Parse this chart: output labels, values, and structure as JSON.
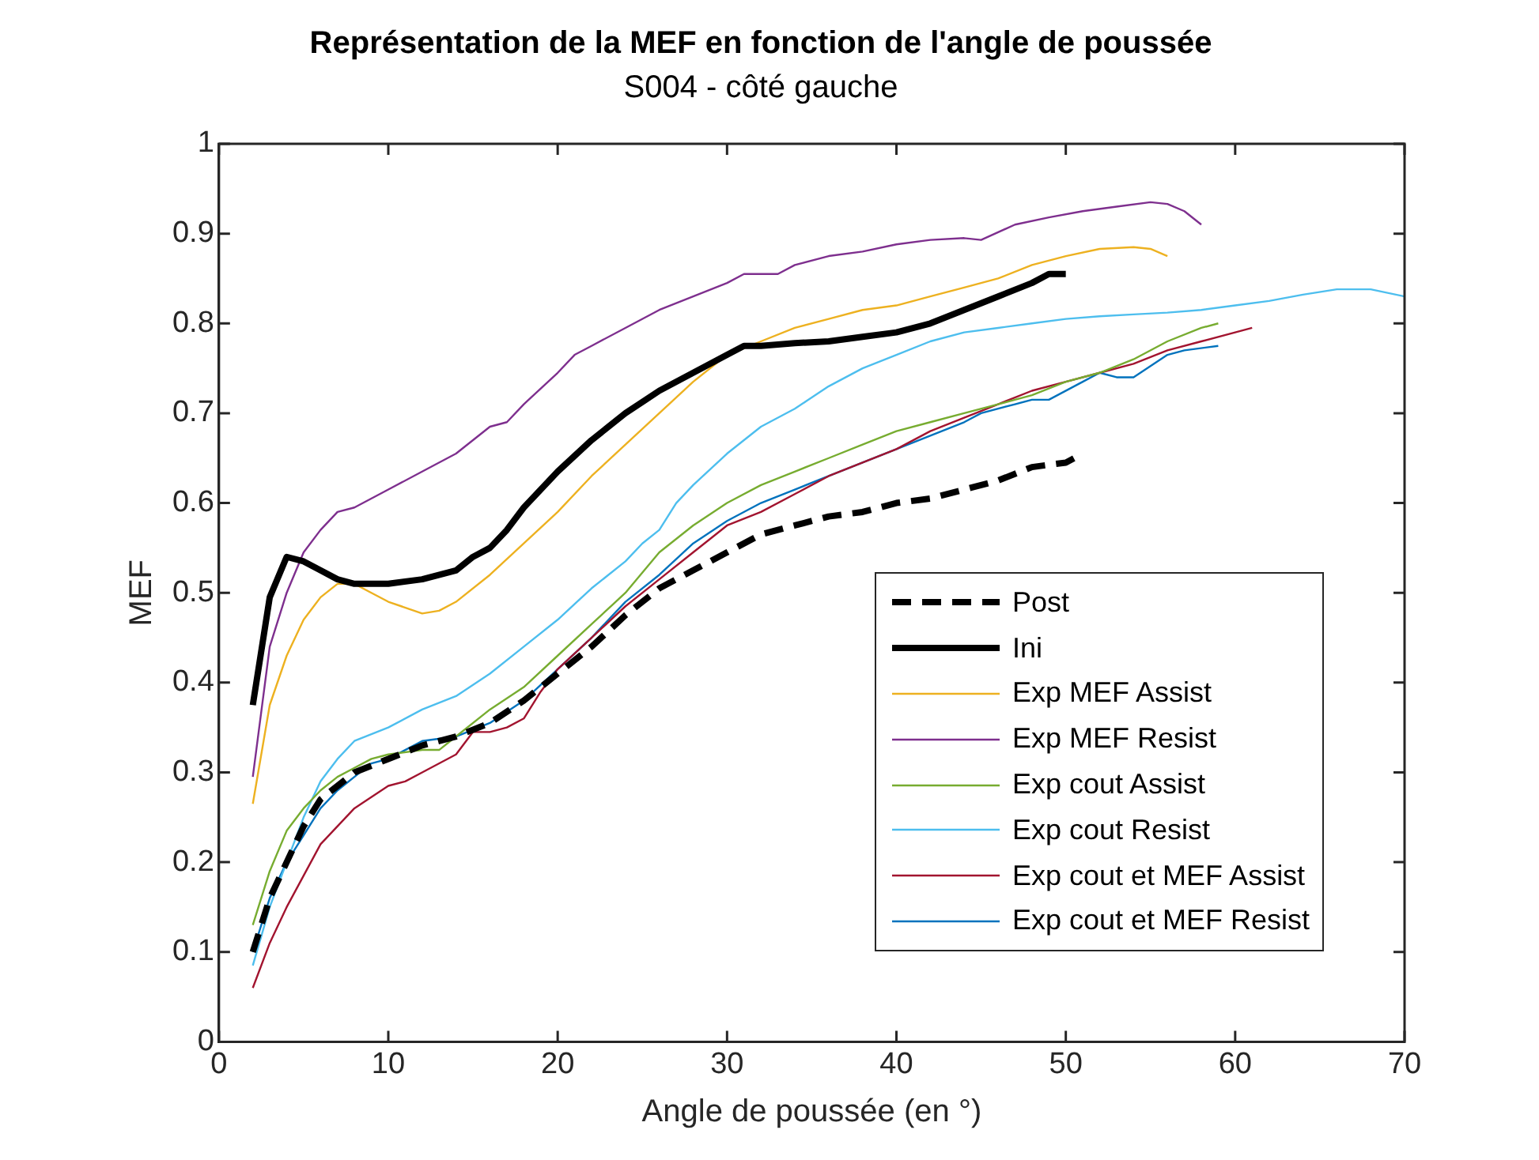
{
  "chart_data": {
    "type": "line",
    "title": "Représentation de la MEF en fonction de l'angle de poussée",
    "subtitle": "S004 - côté gauche",
    "xlabel": "Angle de poussée (en °)",
    "ylabel": "MEF",
    "xlim": [
      0,
      70
    ],
    "xticks": [
      0,
      10,
      20,
      30,
      40,
      50,
      60,
      70
    ],
    "ylim": [
      0,
      1
    ],
    "yticks": [
      0,
      0.1,
      0.2,
      0.3,
      0.4,
      0.5,
      0.6,
      0.7,
      0.8,
      0.9,
      1
    ],
    "grid": false,
    "legend": "right",
    "marker": "none",
    "series": [
      {
        "name": "Post",
        "color": "#000000",
        "line_style": "dashed",
        "x": [
          2,
          3,
          4,
          5,
          6,
          8,
          10,
          12,
          14,
          16,
          18,
          20,
          22,
          24,
          26,
          28,
          30,
          32,
          34,
          36,
          38,
          40,
          42,
          44,
          46,
          48,
          50,
          51
        ],
        "values": [
          0.1,
          0.16,
          0.2,
          0.24,
          0.27,
          0.3,
          0.315,
          0.33,
          0.34,
          0.355,
          0.38,
          0.41,
          0.44,
          0.475,
          0.505,
          0.525,
          0.545,
          0.565,
          0.575,
          0.585,
          0.59,
          0.6,
          0.605,
          0.615,
          0.625,
          0.64,
          0.645,
          0.655
        ]
      },
      {
        "name": "Ini",
        "color": "#000000",
        "line_style": "solid",
        "x": [
          2,
          3,
          4,
          5,
          6,
          7,
          8,
          10,
          12,
          14,
          15,
          16,
          17,
          18,
          19,
          20,
          22,
          24,
          26,
          28,
          30,
          31,
          32,
          34,
          36,
          38,
          40,
          42,
          44,
          46,
          48,
          49,
          50
        ],
        "values": [
          0.375,
          0.495,
          0.54,
          0.535,
          0.525,
          0.515,
          0.51,
          0.51,
          0.515,
          0.525,
          0.54,
          0.55,
          0.57,
          0.595,
          0.615,
          0.635,
          0.67,
          0.7,
          0.725,
          0.745,
          0.765,
          0.775,
          0.775,
          0.778,
          0.78,
          0.785,
          0.79,
          0.8,
          0.815,
          0.83,
          0.845,
          0.855,
          0.855
        ]
      },
      {
        "name": "Exp MEF Assist",
        "color": "#edb120",
        "line_style": "solid",
        "x": [
          2,
          3,
          4,
          5,
          6,
          7,
          8,
          9,
          10,
          12,
          13,
          14,
          16,
          18,
          20,
          22,
          24,
          26,
          28,
          30,
          32,
          34,
          36,
          38,
          40,
          42,
          44,
          46,
          48,
          50,
          52,
          54,
          55,
          56
        ],
        "values": [
          0.265,
          0.375,
          0.43,
          0.47,
          0.495,
          0.51,
          0.51,
          0.5,
          0.49,
          0.477,
          0.48,
          0.49,
          0.52,
          0.555,
          0.59,
          0.63,
          0.665,
          0.7,
          0.735,
          0.765,
          0.78,
          0.795,
          0.805,
          0.815,
          0.82,
          0.83,
          0.84,
          0.85,
          0.865,
          0.875,
          0.883,
          0.885,
          0.883,
          0.875
        ]
      },
      {
        "name": "Exp MEF Resist",
        "color": "#7e2f8e",
        "line_style": "solid",
        "x": [
          2,
          3,
          4,
          5,
          6,
          7,
          8,
          10,
          12,
          14,
          16,
          17,
          18,
          20,
          21,
          22,
          24,
          26,
          28,
          30,
          31,
          33,
          34,
          36,
          38,
          40,
          42,
          44,
          45,
          47,
          49,
          51,
          53,
          55,
          56,
          57,
          58
        ],
        "values": [
          0.295,
          0.44,
          0.5,
          0.545,
          0.57,
          0.59,
          0.595,
          0.615,
          0.635,
          0.655,
          0.685,
          0.69,
          0.71,
          0.745,
          0.765,
          0.775,
          0.795,
          0.815,
          0.83,
          0.845,
          0.855,
          0.855,
          0.865,
          0.875,
          0.88,
          0.888,
          0.893,
          0.895,
          0.893,
          0.91,
          0.918,
          0.925,
          0.93,
          0.935,
          0.933,
          0.925,
          0.91
        ]
      },
      {
        "name": "Exp cout Assist",
        "color": "#77ac30",
        "line_style": "solid",
        "x": [
          2,
          3,
          4,
          5,
          6,
          7,
          8,
          9,
          10,
          12,
          13,
          14,
          16,
          18,
          20,
          22,
          24,
          26,
          28,
          30,
          32,
          34,
          36,
          38,
          40,
          42,
          44,
          46,
          48,
          50,
          52,
          54,
          56,
          58,
          59
        ],
        "values": [
          0.13,
          0.19,
          0.235,
          0.26,
          0.28,
          0.295,
          0.305,
          0.315,
          0.32,
          0.325,
          0.325,
          0.34,
          0.37,
          0.395,
          0.43,
          0.465,
          0.5,
          0.545,
          0.575,
          0.6,
          0.62,
          0.635,
          0.65,
          0.665,
          0.68,
          0.69,
          0.7,
          0.71,
          0.72,
          0.735,
          0.745,
          0.76,
          0.78,
          0.795,
          0.8
        ]
      },
      {
        "name": "Exp cout Resist",
        "color": "#4dbeee",
        "line_style": "solid",
        "x": [
          2,
          3,
          4,
          5,
          6,
          7,
          8,
          10,
          12,
          14,
          16,
          18,
          20,
          22,
          24,
          25,
          26,
          27,
          28,
          30,
          32,
          34,
          36,
          38,
          40,
          42,
          44,
          46,
          48,
          50,
          52,
          54,
          56,
          58,
          60,
          62,
          64,
          66,
          68,
          70
        ],
        "values": [
          0.085,
          0.15,
          0.2,
          0.25,
          0.29,
          0.315,
          0.335,
          0.35,
          0.37,
          0.385,
          0.41,
          0.44,
          0.47,
          0.505,
          0.535,
          0.555,
          0.57,
          0.6,
          0.62,
          0.655,
          0.685,
          0.705,
          0.73,
          0.75,
          0.765,
          0.78,
          0.79,
          0.795,
          0.8,
          0.805,
          0.808,
          0.81,
          0.812,
          0.815,
          0.82,
          0.825,
          0.832,
          0.838,
          0.838,
          0.83
        ]
      },
      {
        "name": "Exp cout et MEF Assist",
        "color": "#a2142f",
        "line_style": "solid",
        "x": [
          2,
          3,
          4,
          5,
          6,
          8,
          10,
          11,
          12,
          14,
          15,
          16,
          17,
          18,
          19,
          20,
          22,
          24,
          26,
          28,
          30,
          32,
          34,
          36,
          38,
          40,
          42,
          44,
          46,
          48,
          50,
          52,
          54,
          56,
          58,
          60,
          61
        ],
        "values": [
          0.06,
          0.11,
          0.15,
          0.185,
          0.22,
          0.26,
          0.285,
          0.29,
          0.3,
          0.32,
          0.345,
          0.345,
          0.35,
          0.36,
          0.39,
          0.415,
          0.45,
          0.485,
          0.515,
          0.545,
          0.575,
          0.59,
          0.61,
          0.63,
          0.645,
          0.66,
          0.68,
          0.695,
          0.71,
          0.725,
          0.735,
          0.745,
          0.755,
          0.77,
          0.78,
          0.79,
          0.795
        ]
      },
      {
        "name": "Exp cout et MEF Resist",
        "color": "#0072bd",
        "line_style": "solid",
        "x": [
          2,
          3,
          4,
          5,
          6,
          7,
          8,
          9,
          10,
          11,
          12,
          14,
          16,
          18,
          20,
          22,
          24,
          26,
          28,
          30,
          32,
          34,
          36,
          38,
          40,
          42,
          44,
          45,
          47,
          48,
          49,
          51,
          52,
          53,
          54,
          56,
          57,
          59
        ],
        "values": [
          0.1,
          0.16,
          0.2,
          0.23,
          0.26,
          0.28,
          0.295,
          0.31,
          0.315,
          0.325,
          0.335,
          0.34,
          0.355,
          0.38,
          0.415,
          0.45,
          0.49,
          0.52,
          0.555,
          0.58,
          0.6,
          0.615,
          0.63,
          0.645,
          0.66,
          0.675,
          0.69,
          0.7,
          0.71,
          0.715,
          0.715,
          0.735,
          0.745,
          0.74,
          0.74,
          0.765,
          0.77,
          0.775
        ]
      }
    ]
  }
}
